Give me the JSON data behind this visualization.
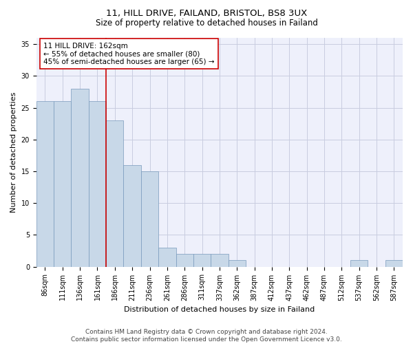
{
  "title_line1": "11, HILL DRIVE, FAILAND, BRISTOL, BS8 3UX",
  "title_line2": "Size of property relative to detached houses in Failand",
  "xlabel": "Distribution of detached houses by size in Failand",
  "ylabel": "Number of detached properties",
  "categories": [
    "86sqm",
    "111sqm",
    "136sqm",
    "161sqm",
    "186sqm",
    "211sqm",
    "236sqm",
    "261sqm",
    "286sqm",
    "311sqm",
    "337sqm",
    "362sqm",
    "387sqm",
    "412sqm",
    "437sqm",
    "462sqm",
    "487sqm",
    "512sqm",
    "537sqm",
    "562sqm",
    "587sqm"
  ],
  "values": [
    26,
    26,
    28,
    26,
    23,
    16,
    15,
    3,
    2,
    2,
    2,
    1,
    0,
    0,
    0,
    0,
    0,
    0,
    1,
    0,
    1
  ],
  "bar_color": "#c8d8e8",
  "bar_edge_color": "#7799bb",
  "bar_width": 1.0,
  "ylim": [
    0,
    36
  ],
  "yticks": [
    0,
    5,
    10,
    15,
    20,
    25,
    30,
    35
  ],
  "property_line_x": 3.5,
  "annotation_text_line1": "11 HILL DRIVE: 162sqm",
  "annotation_text_line2": "← 55% of detached houses are smaller (80)",
  "annotation_text_line3": "45% of semi-detached houses are larger (65) →",
  "annotation_box_color": "#ffffff",
  "annotation_box_edge_color": "#cc0000",
  "vline_color": "#cc0000",
  "grid_color": "#c8cce0",
  "background_color": "#eef0fb",
  "footer_text": "Contains HM Land Registry data © Crown copyright and database right 2024.\nContains public sector information licensed under the Open Government Licence v3.0.",
  "title_fontsize": 9.5,
  "subtitle_fontsize": 8.5,
  "xlabel_fontsize": 8,
  "ylabel_fontsize": 8,
  "tick_fontsize": 7,
  "annotation_fontsize": 7.5,
  "footer_fontsize": 6.5
}
